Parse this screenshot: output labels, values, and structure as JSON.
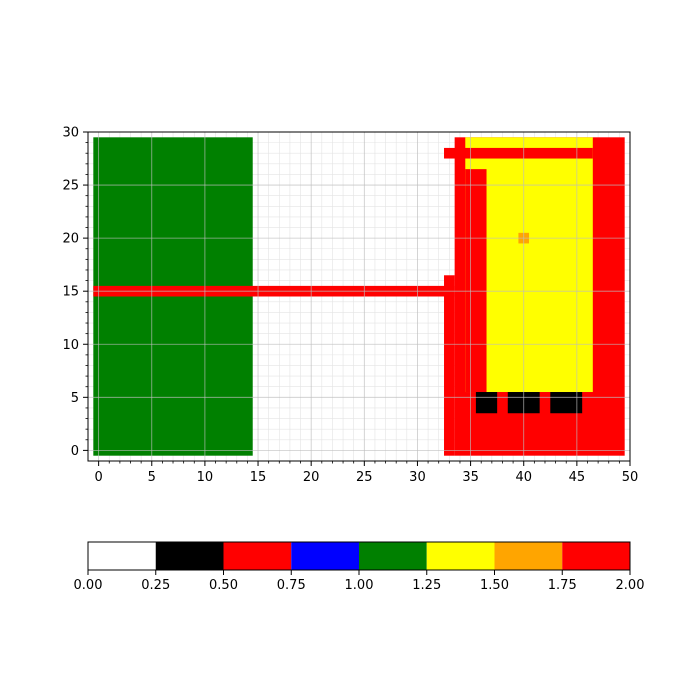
{
  "chart_data": [
    {
      "type": "heatmap",
      "title": "",
      "xlabel": "",
      "ylabel": "",
      "xlim": [
        -1,
        50
      ],
      "ylim": [
        -1,
        30
      ],
      "x_ticks": [
        "0",
        "5",
        "10",
        "15",
        "20",
        "25",
        "30",
        "35",
        "40",
        "45",
        "50"
      ],
      "y_ticks": [
        "0",
        "5",
        "10",
        "15",
        "20",
        "25",
        "30"
      ],
      "grid": true,
      "cell_size": 1,
      "background_value": 0.0,
      "regions": [
        {
          "name": "green-block",
          "value": 1.125,
          "x": [
            0,
            14
          ],
          "y": [
            0,
            29
          ]
        },
        {
          "name": "red-corridor",
          "value": 0.625,
          "x": [
            0,
            33
          ],
          "y": [
            15,
            15
          ]
        },
        {
          "name": "red-building",
          "value": 0.625,
          "x": [
            34,
            49
          ],
          "y": [
            0,
            29
          ]
        },
        {
          "name": "red-building-notch",
          "value": 0.625,
          "x": [
            33,
            33
          ],
          "y": [
            0,
            16
          ]
        },
        {
          "name": "yellow-room",
          "value": 1.375,
          "x": [
            35,
            46
          ],
          "y": [
            6,
            29
          ]
        },
        {
          "name": "red-top-wall",
          "value": 0.625,
          "x": [
            33,
            46
          ],
          "y": [
            28,
            28
          ]
        },
        {
          "name": "red-inner-wall",
          "value": 0.625,
          "x": [
            35,
            36
          ],
          "y": [
            6,
            26
          ]
        },
        {
          "name": "orange-target",
          "value": 1.625,
          "x": [
            40,
            40
          ],
          "y": [
            20,
            20
          ]
        },
        {
          "name": "black-obstacle-1",
          "value": 0.375,
          "x": [
            36,
            37
          ],
          "y": [
            4,
            5
          ]
        },
        {
          "name": "black-obstacle-2",
          "value": 0.375,
          "x": [
            39,
            41
          ],
          "y": [
            4,
            5
          ]
        },
        {
          "name": "black-obstacle-3",
          "value": 0.375,
          "x": [
            43,
            45
          ],
          "y": [
            4,
            5
          ]
        }
      ]
    },
    {
      "type": "colorbar",
      "range": [
        0.0,
        2.0
      ],
      "tick_labels": [
        "0.00",
        "0.25",
        "0.50",
        "0.75",
        "1.00",
        "1.25",
        "1.50",
        "1.75",
        "2.00"
      ],
      "segments": [
        {
          "from": 0.0,
          "to": 0.25,
          "color": "#ffffff"
        },
        {
          "from": 0.25,
          "to": 0.5,
          "color": "#000000"
        },
        {
          "from": 0.5,
          "to": 0.75,
          "color": "#ff0000"
        },
        {
          "from": 0.75,
          "to": 1.0,
          "color": "#0000ff"
        },
        {
          "from": 1.0,
          "to": 1.25,
          "color": "#008000"
        },
        {
          "from": 1.25,
          "to": 1.5,
          "color": "#ffff00"
        },
        {
          "from": 1.5,
          "to": 1.75,
          "color": "#ffa500"
        },
        {
          "from": 1.75,
          "to": 2.0,
          "color": "#ff0000"
        }
      ]
    }
  ]
}
